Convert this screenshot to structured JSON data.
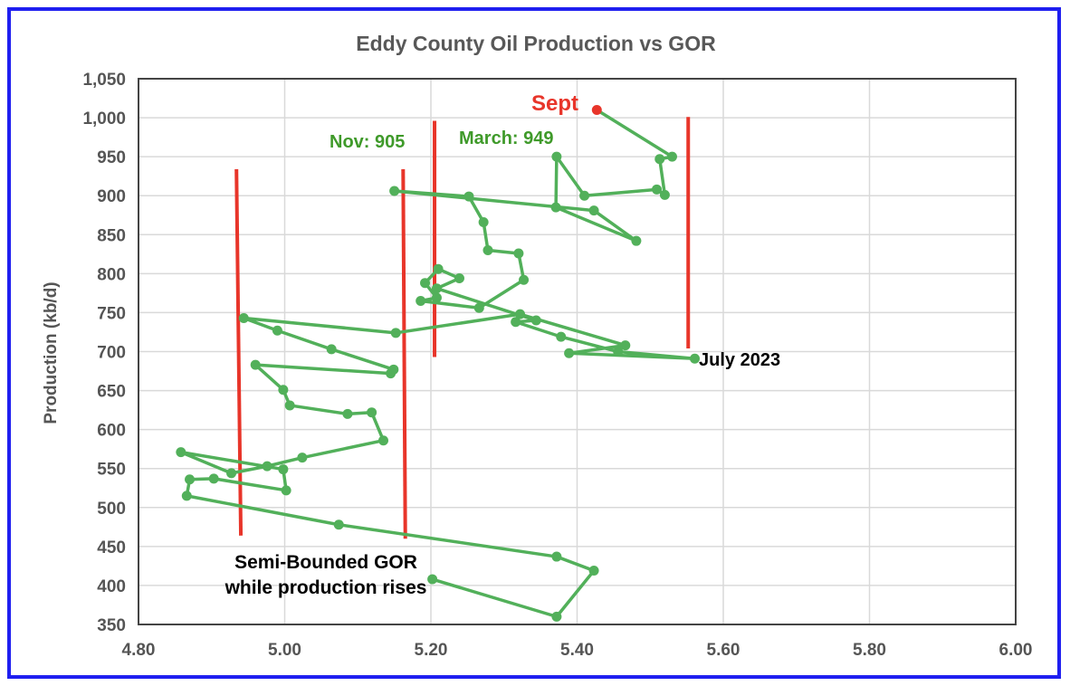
{
  "chart_data": {
    "type": "scatter",
    "title": "Eddy County Oil Production vs GOR",
    "xlabel": "",
    "ylabel": "Production (kb/d)",
    "xlim": [
      4.8,
      6.0
    ],
    "ylim": [
      350,
      1050
    ],
    "x_ticks": [
      "4.80",
      "5.00",
      "5.20",
      "5.40",
      "5.60",
      "5.80",
      "6.00"
    ],
    "y_ticks": [
      "350",
      "400",
      "450",
      "500",
      "550",
      "600",
      "650",
      "700",
      "750",
      "800",
      "850",
      "900",
      "950",
      "1,000",
      "1,050"
    ],
    "grid": true,
    "series": [
      {
        "name": "Production vs GOR",
        "color": "#52b05a",
        "points": [
          [
            5.202,
            408
          ],
          [
            5.372,
            360
          ],
          [
            5.423,
            419
          ],
          [
            5.372,
            437
          ],
          [
            5.074,
            478
          ],
          [
            4.866,
            515
          ],
          [
            4.87,
            536
          ],
          [
            4.903,
            537
          ],
          [
            5.002,
            522
          ],
          [
            4.998,
            549
          ],
          [
            4.858,
            571
          ],
          [
            4.927,
            544
          ],
          [
            4.976,
            553
          ],
          [
            5.024,
            564
          ],
          [
            5.135,
            586
          ],
          [
            5.119,
            622
          ],
          [
            5.086,
            620
          ],
          [
            5.007,
            631
          ],
          [
            4.998,
            651
          ],
          [
            4.96,
            683
          ],
          [
            5.145,
            672
          ],
          [
            5.149,
            677
          ],
          [
            5.064,
            703
          ],
          [
            4.99,
            727
          ],
          [
            4.944,
            743
          ],
          [
            5.152,
            724
          ],
          [
            5.322,
            748
          ],
          [
            5.466,
            708
          ],
          [
            5.389,
            698
          ],
          [
            5.561,
            691
          ],
          [
            5.456,
            700
          ],
          [
            5.378,
            719
          ],
          [
            5.316,
            738
          ],
          [
            5.344,
            740
          ],
          [
            5.208,
            781
          ],
          [
            5.239,
            794
          ],
          [
            5.21,
            806
          ],
          [
            5.192,
            788
          ],
          [
            5.208,
            769
          ],
          [
            5.186,
            765
          ],
          [
            5.266,
            756
          ],
          [
            5.327,
            792
          ],
          [
            5.32,
            826
          ],
          [
            5.278,
            830
          ],
          [
            5.272,
            866
          ],
          [
            5.252,
            899
          ],
          [
            5.15,
            906
          ],
          [
            5.423,
            881
          ],
          [
            5.481,
            842
          ],
          [
            5.371,
            885
          ],
          [
            5.372,
            950
          ],
          [
            5.41,
            900
          ],
          [
            5.509,
            908
          ],
          [
            5.52,
            901
          ],
          [
            5.513,
            947
          ],
          [
            5.53,
            950
          ]
        ]
      },
      {
        "name": "Sept",
        "color": "#e8352a",
        "points": [
          [
            5.427,
            1010
          ]
        ]
      }
    ],
    "reference_lines": [
      {
        "x": [
          4.934,
          4.94
        ],
        "y": [
          934,
          464
        ],
        "color": "#e8352a"
      },
      {
        "x": [
          5.162,
          5.165
        ],
        "y": [
          934,
          460
        ],
        "color": "#e8352a"
      },
      {
        "x": [
          5.205,
          5.205
        ],
        "y": [
          996,
          693
        ],
        "color": "#e8352a"
      },
      {
        "x": [
          5.552,
          5.552
        ],
        "y": [
          1001,
          704
        ],
        "color": "#e8352a"
      }
    ],
    "annotations": {
      "sept": "Sept",
      "nov": "Nov: 905",
      "march": "March: 949",
      "july": "July 2023",
      "semi_line1": "Semi-Bounded GOR",
      "semi_line2": "while production rises"
    },
    "colors": {
      "frame": "#1f1ff0",
      "annotation_red": "#e8352a",
      "annotation_green": "#3f9a2a"
    }
  }
}
